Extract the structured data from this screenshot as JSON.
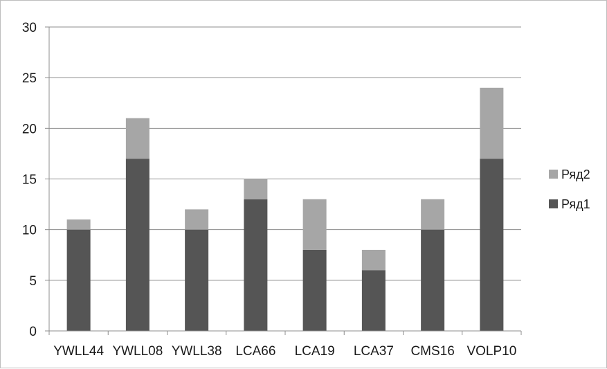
{
  "chart_data": {
    "type": "bar",
    "stacked": true,
    "title": "",
    "xlabel": "",
    "ylabel": "",
    "categories": [
      "YWLL44",
      "YWLL08",
      "YWLL38",
      "LCA66",
      "LCA19",
      "LCA37",
      "CMS16",
      "VOLP10"
    ],
    "series": [
      {
        "name": "Ряд1",
        "values": [
          10,
          17,
          10,
          13,
          8,
          6,
          10,
          17
        ],
        "color": "#555555"
      },
      {
        "name": "Ряд2",
        "values": [
          1,
          4,
          2,
          2,
          5,
          2,
          3,
          7
        ],
        "color": "#a6a6a6"
      }
    ],
    "ylim": [
      0,
      30
    ],
    "yticks": [
      0,
      5,
      10,
      15,
      20,
      25,
      30
    ],
    "grid": true,
    "legend_position": "right"
  }
}
